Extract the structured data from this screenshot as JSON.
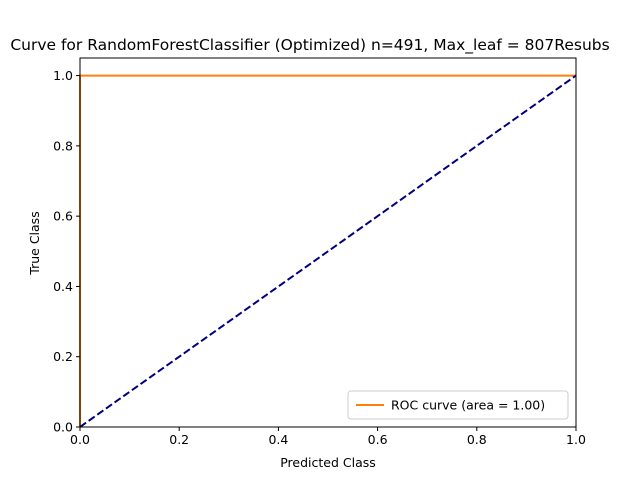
{
  "chart_data": {
    "type": "line",
    "title": "Curve for RandomForestClassifier (Optimized) n=491, Max_leaf = 807Resubs",
    "xlabel": "Predicted Class",
    "ylabel": "True Class",
    "xlim": [
      0,
      1
    ],
    "ylim": [
      0,
      1.05
    ],
    "xticks": [
      0,
      0.2,
      0.4,
      0.6,
      0.8,
      1
    ],
    "xtick_labels": [
      "0.0",
      "0.2",
      "0.4",
      "0.6",
      "0.8",
      "1.0"
    ],
    "yticks": [
      0,
      0.2,
      0.4,
      0.6,
      0.8,
      1
    ],
    "ytick_labels": [
      "0.0",
      "0.2",
      "0.4",
      "0.6",
      "0.8",
      "1.0"
    ],
    "grid": false,
    "legend_position": "lower-right",
    "series": [
      {
        "name": "ROC curve (area = 1.00)",
        "color": "#ff7f0e",
        "style": "solid",
        "x": [
          0,
          0,
          1
        ],
        "y": [
          0,
          1,
          1
        ]
      },
      {
        "color": "#000080",
        "style": "dashed",
        "x": [
          0,
          1
        ],
        "y": [
          0,
          1
        ]
      }
    ]
  }
}
